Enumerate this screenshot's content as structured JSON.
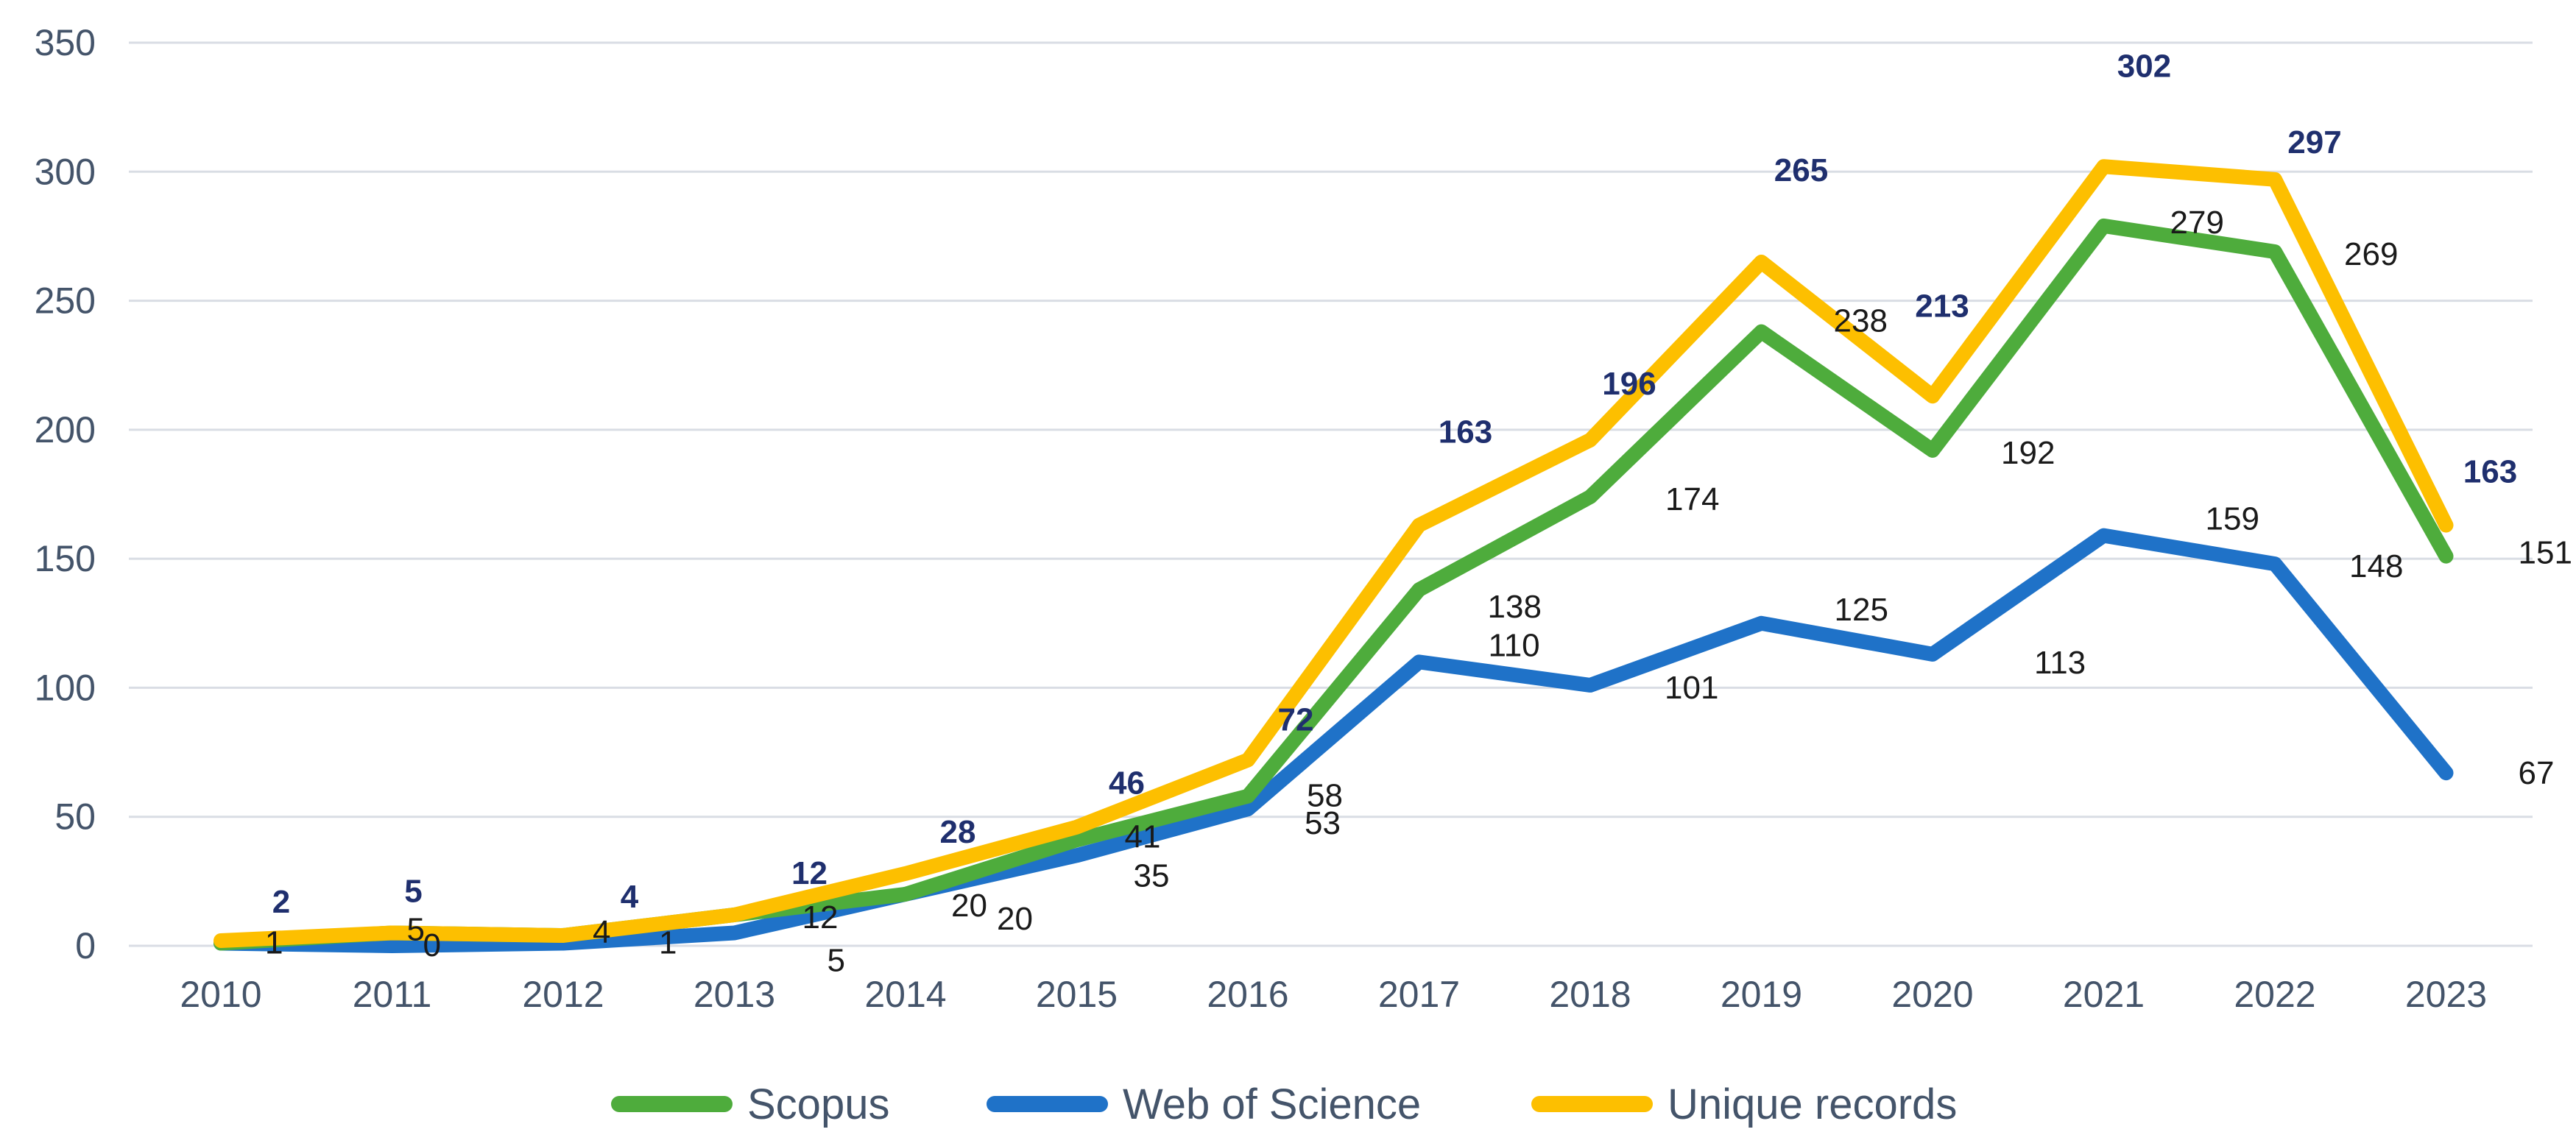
{
  "chart_data": {
    "type": "line",
    "title": "",
    "xlabel": "",
    "ylabel": "",
    "categories": [
      "2010",
      "2011",
      "2012",
      "2013",
      "2014",
      "2015",
      "2016",
      "2017",
      "2018",
      "2019",
      "2020",
      "2021",
      "2022",
      "2023"
    ],
    "ylim": [
      0,
      350
    ],
    "yticks": [
      0,
      50,
      100,
      150,
      200,
      250,
      300,
      350
    ],
    "grid": true,
    "legend_position": "bottom",
    "series": [
      {
        "name": "Scopus",
        "color": "#4eac3c",
        "values": [
          1,
          5,
          4,
          12,
          20,
          41,
          58,
          138,
          174,
          238,
          192,
          279,
          269,
          151
        ],
        "label_style": "regular"
      },
      {
        "name": "Web of Science",
        "color": "#1f72c8",
        "values": [
          1,
          0,
          1,
          5,
          20,
          35,
          53,
          110,
          101,
          125,
          113,
          159,
          148,
          67
        ],
        "label_style": "regular"
      },
      {
        "name": "Unique records",
        "color": "#fdbf00",
        "values": [
          2,
          5,
          4,
          12,
          28,
          46,
          72,
          163,
          196,
          265,
          213,
          302,
          297,
          163
        ],
        "label_style": "bold"
      }
    ]
  }
}
